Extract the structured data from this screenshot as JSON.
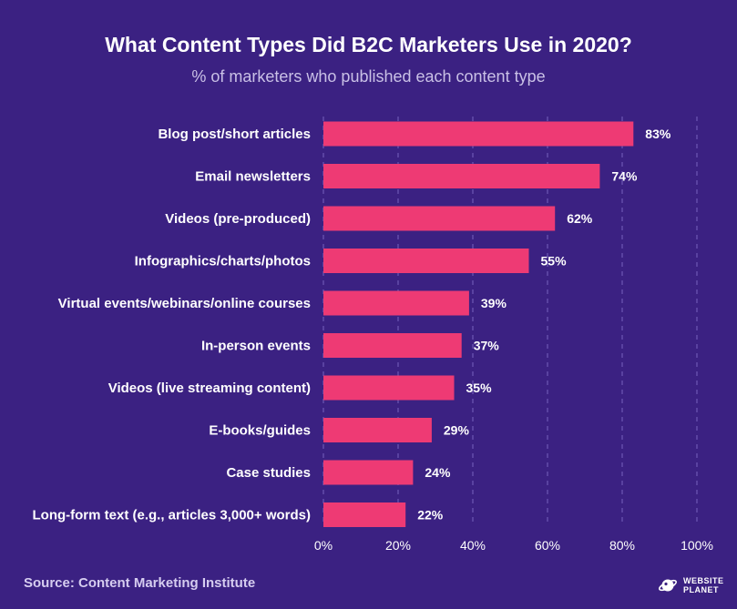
{
  "header": {
    "title": "What Content Types Did B2C Marketers Use in 2020?",
    "subtitle": "% of marketers who published each content type"
  },
  "footer": {
    "source": "Source: Content Marketing Institute",
    "brand_line1": "WEBSITE",
    "brand_line2": "PLANET",
    "brand_icon": "planet-icon"
  },
  "colors": {
    "background": "#3b2182",
    "bar": "#ee3a74",
    "grid": "#6d57b3",
    "text": "#ffffff"
  },
  "chart_data": {
    "type": "bar",
    "orientation": "horizontal",
    "categories": [
      "Blog post/short articles",
      "Email newsletters",
      "Videos (pre-produced)",
      "Infographics/charts/photos",
      "Virtual events/webinars/online courses",
      "In-person events",
      "Videos (live streaming content)",
      "E-books/guides",
      "Case studies",
      "Long-form text (e.g., articles 3,000+ words)"
    ],
    "values": [
      83,
      74,
      62,
      55,
      39,
      37,
      35,
      29,
      24,
      22
    ],
    "value_labels": [
      "83%",
      "74%",
      "62%",
      "55%",
      "39%",
      "37%",
      "35%",
      "29%",
      "24%",
      "22%"
    ],
    "xlim": [
      0,
      100
    ],
    "xticks": [
      0,
      20,
      40,
      60,
      80,
      100
    ],
    "xtick_labels": [
      "0%",
      "20%",
      "40%",
      "60%",
      "80%",
      "100%"
    ],
    "grid": "vertical dashed",
    "legend": "none"
  }
}
